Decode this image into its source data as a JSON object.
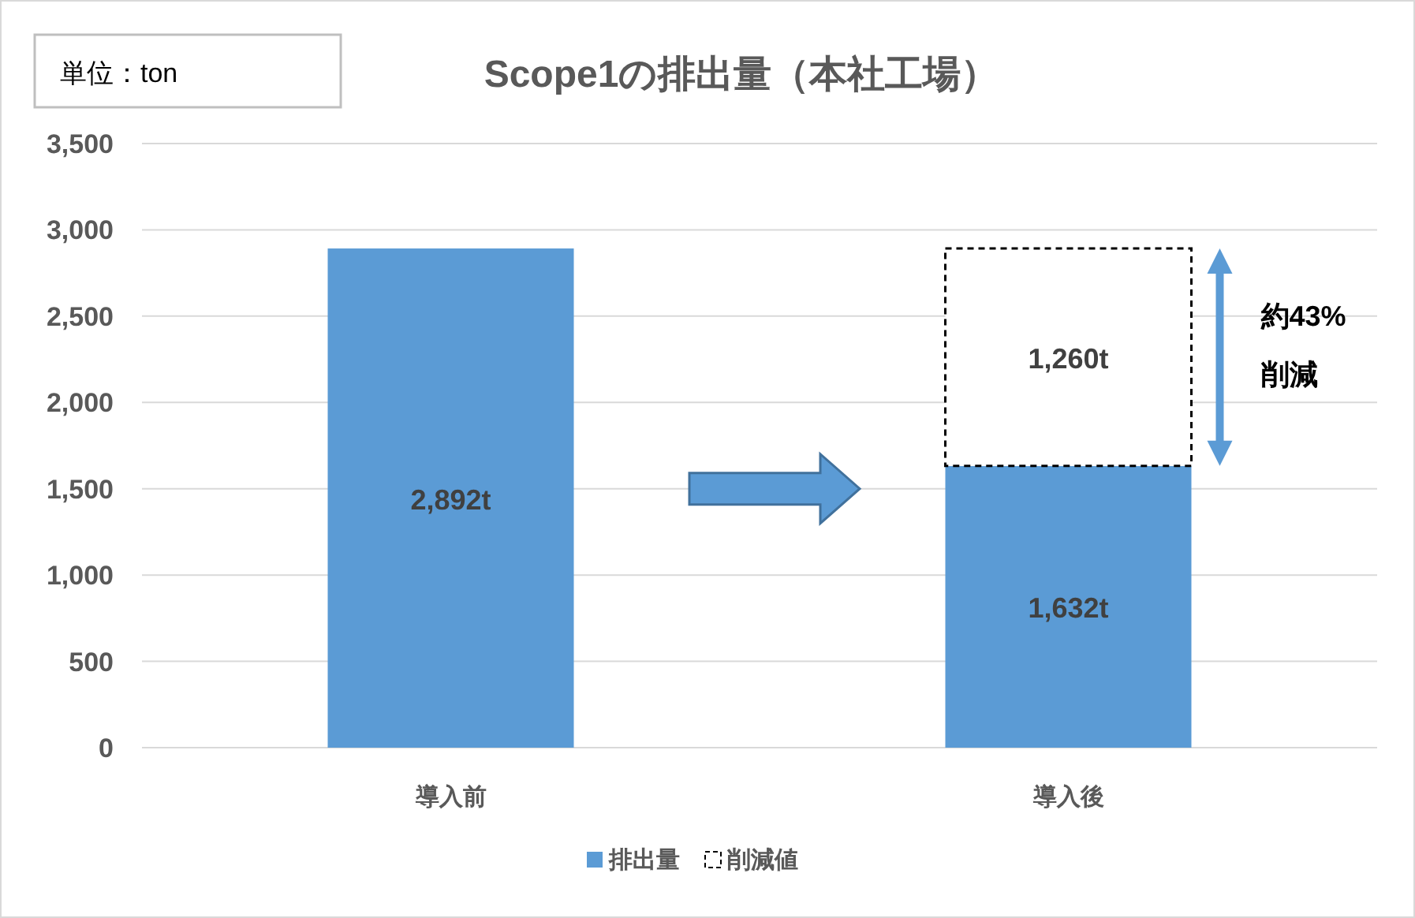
{
  "chart_data": {
    "type": "bar",
    "stacked": true,
    "title": "Scope1の排出量（本社工場）",
    "categories": [
      "導入前",
      "導入後"
    ],
    "series": [
      {
        "name": "排出量",
        "color": "#5b9bd5",
        "values": [
          2892,
          1632
        ],
        "value_labels": [
          "2,892t",
          "1,632t"
        ]
      },
      {
        "name": "削減値",
        "color": "#ffffff",
        "line_style": "dashed",
        "values": [
          null,
          1260
        ],
        "value_labels": [
          null,
          "1,260t"
        ]
      }
    ],
    "ylim": [
      0,
      3500
    ],
    "yticks": [
      {
        "value": 0,
        "label": "0"
      },
      {
        "value": 500,
        "label": "500"
      },
      {
        "value": 1000,
        "label": "1,000"
      },
      {
        "value": 1500,
        "label": "1,500"
      },
      {
        "value": 2000,
        "label": "2,000"
      },
      {
        "value": 2500,
        "label": "2,500"
      },
      {
        "value": 3000,
        "label": "3,000"
      },
      {
        "value": 3500,
        "label": "3,500"
      }
    ],
    "grid": "y",
    "legend": "bottom",
    "annotations": [
      "単位：ton",
      "約43%\n削減"
    ]
  }
}
